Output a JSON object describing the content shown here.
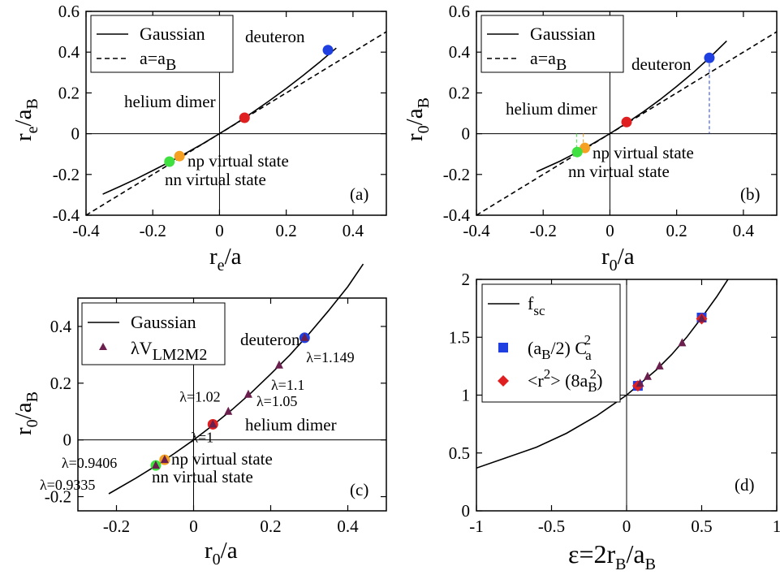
{
  "chart_data": [
    {
      "panel": "(a)",
      "type": "line",
      "xlim": [
        -0.4,
        0.5
      ],
      "ylim": [
        -0.4,
        0.6
      ],
      "xticks": [
        "-0.4",
        "-0.2",
        "0",
        "0.2",
        "0.4"
      ],
      "yticks": [
        "-0.4",
        "-0.2",
        "0",
        "0.2",
        "0.4",
        "0.6"
      ],
      "xlabel": "r_e/a",
      "ylabel": "r_e/a_B",
      "series": [
        {
          "name": "Gaussian",
          "style": "solid",
          "x": [
            -0.35,
            -0.3,
            -0.25,
            -0.2,
            -0.15,
            -0.1,
            -0.05,
            0,
            0.05,
            0.1,
            0.15,
            0.2,
            0.25,
            0.3,
            0.35
          ],
          "y": [
            -0.297,
            -0.26,
            -0.222,
            -0.181,
            -0.139,
            -0.095,
            -0.049,
            0,
            0.051,
            0.105,
            0.162,
            0.222,
            0.285,
            0.351,
            0.42
          ]
        },
        {
          "name": "a=a_B",
          "style": "dashed",
          "x": [
            -0.4,
            0.5
          ],
          "y": [
            -0.4,
            0.5
          ]
        }
      ],
      "points": [
        {
          "label": "deuteron",
          "x": 0.325,
          "y": 0.41,
          "color": "#1f3fe0"
        },
        {
          "label": "helium dimer",
          "x": 0.075,
          "y": 0.078,
          "color": "#e02020"
        },
        {
          "label": "np virtual state",
          "x": -0.12,
          "y": -0.11,
          "color": "#f5a020"
        },
        {
          "label": "nn virtual state",
          "x": -0.15,
          "y": -0.137,
          "color": "#3fe03f"
        }
      ]
    },
    {
      "panel": "(b)",
      "type": "line",
      "xlim": [
        -0.4,
        0.5
      ],
      "ylim": [
        -0.4,
        0.6
      ],
      "xticks": [
        "-0.4",
        "-0.2",
        "0",
        "0.2",
        "0.4"
      ],
      "yticks": [
        "-0.4",
        "-0.2",
        "0",
        "0.2",
        "0.4",
        "0.6"
      ],
      "xlabel": "r_0/a",
      "ylabel": "r_0/a_B",
      "series": [
        {
          "name": "Gaussian",
          "style": "solid",
          "x": [
            -0.22,
            -0.15,
            -0.1,
            -0.05,
            0,
            0.05,
            0.1,
            0.15,
            0.2,
            0.25,
            0.3,
            0.35
          ],
          "y": [
            -0.187,
            -0.135,
            -0.093,
            -0.048,
            0,
            0.052,
            0.107,
            0.167,
            0.232,
            0.3,
            0.375,
            0.455
          ]
        },
        {
          "name": "a=a_B",
          "style": "dashed",
          "x": [
            -0.4,
            0.5
          ],
          "y": [
            -0.4,
            0.5
          ]
        }
      ],
      "points": [
        {
          "label": "deuteron",
          "x": 0.298,
          "y": 0.372,
          "color": "#1f3fe0"
        },
        {
          "label": "helium dimer",
          "x": 0.05,
          "y": 0.057,
          "color": "#e02020"
        },
        {
          "label": "np virtual state",
          "x": -0.075,
          "y": -0.07,
          "color": "#f5a020"
        },
        {
          "label": "nn virtual state",
          "x": -0.098,
          "y": -0.09,
          "color": "#3fe03f"
        }
      ]
    },
    {
      "panel": "(c)",
      "type": "line",
      "xlim": [
        -0.3,
        0.5
      ],
      "ylim": [
        -0.25,
        0.5
      ],
      "xticks": [
        "-0.2",
        "0",
        "0.2",
        "0.4"
      ],
      "yticks": [
        "-0.2",
        "0",
        "0.2",
        "0.4"
      ],
      "xlabel": "r_0/a",
      "ylabel": "r_0/a_B",
      "series": [
        {
          "name": "Gaussian",
          "style": "solid",
          "x": [
            -0.22,
            -0.15,
            -0.1,
            -0.05,
            0,
            0.05,
            0.1,
            0.15,
            0.2,
            0.25,
            0.3,
            0.35,
            0.4,
            0.44
          ],
          "y": [
            -0.19,
            -0.135,
            -0.093,
            -0.048,
            0,
            0.052,
            0.107,
            0.167,
            0.232,
            0.3,
            0.375,
            0.455,
            0.54,
            0.62
          ]
        },
        {
          "name": "λV_LM2M2",
          "style": "markers",
          "marker": "triangle",
          "color": "#6b1f4e",
          "x": [
            -0.098,
            -0.075,
            0.05,
            0.09,
            0.142,
            0.222,
            0.288
          ],
          "y": [
            -0.09,
            -0.07,
            0.055,
            0.1,
            0.16,
            0.263,
            0.36
          ],
          "labels": [
            "λ=0.9335",
            "λ=0.9406",
            "λ=1",
            "λ=1.02",
            "λ=1.05",
            "λ=1.1",
            "λ=1.149"
          ]
        }
      ],
      "points": [
        {
          "label": "deuteron",
          "x": 0.288,
          "y": 0.36,
          "color": "#1f3fe0"
        },
        {
          "label": "helium dimer",
          "x": 0.05,
          "y": 0.055,
          "color": "#e02020"
        },
        {
          "label": "np virtual state",
          "x": -0.075,
          "y": -0.07,
          "color": "#f5a020"
        },
        {
          "label": "nn virtual state",
          "x": -0.098,
          "y": -0.09,
          "color": "#3fe03f"
        }
      ]
    },
    {
      "panel": "(d)",
      "type": "line",
      "xlim": [
        -1,
        1
      ],
      "ylim": [
        0,
        2
      ],
      "xticks": [
        "-1",
        "-0.5",
        "0",
        "0.5",
        "1"
      ],
      "yticks": [
        "0",
        "0.5",
        "1",
        "1.5",
        "2"
      ],
      "xlabel": "ε=2r_B/a_B",
      "ylabel": "",
      "series": [
        {
          "name": "f_sc",
          "style": "solid",
          "x": [
            -1,
            -0.8,
            -0.6,
            -0.4,
            -0.2,
            0,
            0.1,
            0.2,
            0.3,
            0.4,
            0.5,
            0.6,
            0.7,
            0.76
          ],
          "y": [
            0.37,
            0.46,
            0.55,
            0.67,
            0.82,
            1.0,
            1.11,
            1.22,
            1.35,
            1.5,
            1.67,
            1.85,
            2.05,
            2.2
          ]
        },
        {
          "name": "(a_B/2) C_a^2",
          "style": "markers",
          "marker": "square",
          "color": "#1f3fe0",
          "x": [
            0.075,
            0.5
          ],
          "y": [
            1.08,
            1.67
          ]
        },
        {
          "name": "<r^2> (8a_B^2)",
          "style": "markers",
          "marker": "diamond",
          "color": "#e02020",
          "x": [
            0.075,
            0.5
          ],
          "y": [
            1.08,
            1.66
          ]
        },
        {
          "name": "λV_LM2M2",
          "style": "markers",
          "marker": "triangle",
          "color": "#6b1f4e",
          "x": [
            0.09,
            0.14,
            0.22,
            0.37,
            0.5
          ],
          "y": [
            1.1,
            1.16,
            1.25,
            1.45,
            1.66
          ]
        }
      ]
    }
  ],
  "labels": {
    "a": {
      "legend1": "Gaussian",
      "legend2": "a=a",
      "legend2sub": "B",
      "deuteron": "deuteron",
      "helium": "helium dimer",
      "np": "np virtual state",
      "nn": "nn virtual state",
      "panel": "(a)",
      "xl": "r",
      "xl_sub": "e",
      "xl_rest": "/a",
      "yl": "r",
      "yl_sub": "e",
      "yl_rest": "/a",
      "yl_sub2": "B"
    },
    "b": {
      "legend1": "Gaussian",
      "legend2": "a=a",
      "legend2sub": "B",
      "deuteron": "deuteron",
      "helium": "helium dimer",
      "np": "np virtual state",
      "nn": "nn virtual state",
      "panel": "(b)",
      "xl": "r",
      "xl_sub": "0",
      "xl_rest": "/a",
      "yl": "r",
      "yl_sub": "0",
      "yl_rest": "/a",
      "yl_sub2": "B"
    },
    "c": {
      "legend1": "Gaussian",
      "legend2": "λV",
      "legend2sub": "LM2M2",
      "deuteron": "deuteron",
      "helium": "helium dimer",
      "np": "np virtual state",
      "nn": "nn virtual state",
      "panel": "(c)",
      "xl": "r",
      "xl_sub": "0",
      "xl_rest": "/a",
      "yl": "r",
      "yl_sub": "0",
      "yl_rest": "/a",
      "yl_sub2": "B"
    },
    "d": {
      "legend1": "f",
      "legend1sub": "sc",
      "legend2a": "(a",
      "legend2b": "B",
      "legend2c": "/2) C",
      "legend2d": "a",
      "legend2e": "2",
      "legend3a": "<r",
      "legend3b": "2",
      "legend3c": "> (8a",
      "legend3d": "B",
      "legend3e": "2",
      "legend3f": ")",
      "panel": "(d)",
      "xl_a": "ε=2r",
      "xl_b": "B",
      "xl_c": "/a",
      "xl_d": "B"
    }
  }
}
